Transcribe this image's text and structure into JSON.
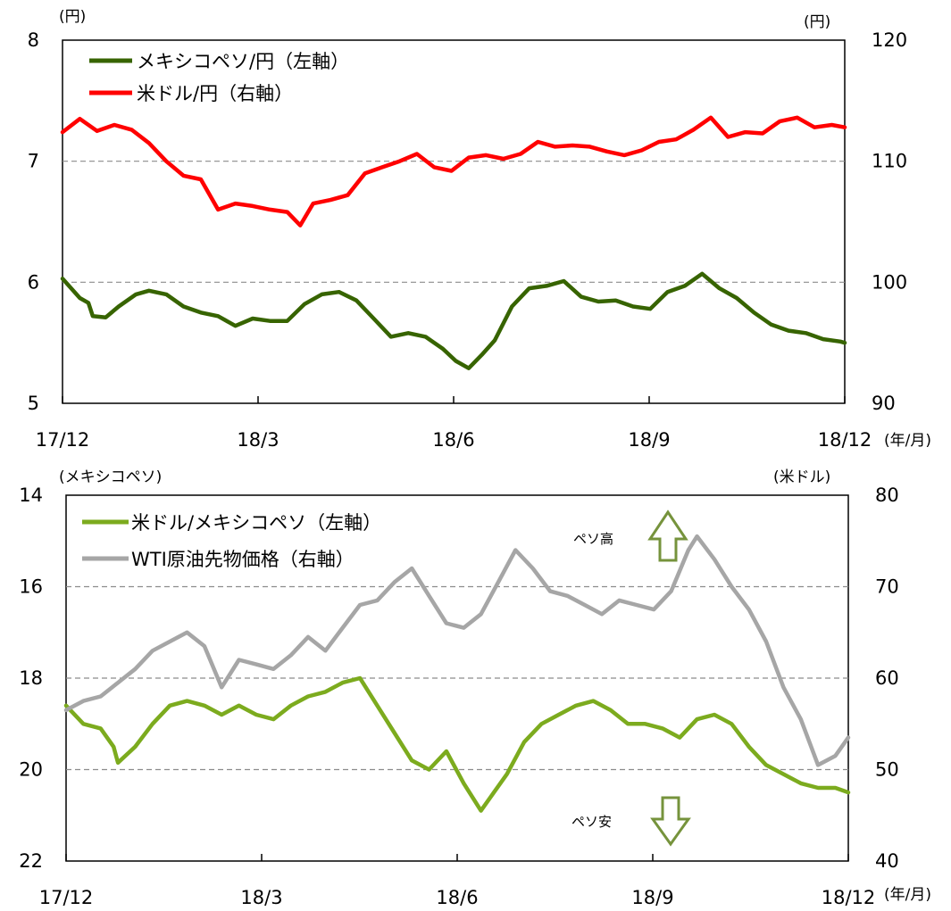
{
  "colors": {
    "mxn_jpy": "#376400",
    "usd_jpy": "#ff0000",
    "usd_mxn": "#7cab1e",
    "wti": "#a6a6a6",
    "arrow": "#76933c",
    "grid": "#8c8c8c"
  },
  "chart_data": [
    {
      "type": "line",
      "title": "",
      "x_ticks": [
        "17/12",
        "18/3",
        "18/6",
        "18/9",
        "18/12"
      ],
      "x_unit": "(年/月)",
      "y_left_unit": "(円)",
      "y_right_unit": "(円)",
      "y_left_ticks": [
        "5",
        "6",
        "7",
        "8"
      ],
      "y_right_ticks": [
        "90",
        "100",
        "110",
        "120"
      ],
      "y_left_range": [
        5,
        8
      ],
      "y_right_range": [
        90,
        120
      ],
      "grid_y_left": [
        6,
        7
      ],
      "legend_position": "top-left",
      "series": [
        {
          "name": "メキシコペソ/円（左軸）",
          "axis": "left",
          "color_key": "mxn_jpy",
          "points": [
            [
              0,
              6.03
            ],
            [
              0.1,
              5.95
            ],
            [
              0.2,
              5.87
            ],
            [
              0.3,
              5.83
            ],
            [
              0.35,
              5.72
            ],
            [
              0.5,
              5.71
            ],
            [
              0.65,
              5.8
            ],
            [
              0.85,
              5.9
            ],
            [
              1.0,
              5.93
            ],
            [
              1.2,
              5.9
            ],
            [
              1.4,
              5.8
            ],
            [
              1.6,
              5.75
            ],
            [
              1.8,
              5.72
            ],
            [
              2.0,
              5.64
            ],
            [
              2.2,
              5.7
            ],
            [
              2.4,
              5.68
            ],
            [
              2.6,
              5.68
            ],
            [
              2.8,
              5.82
            ],
            [
              3.0,
              5.9
            ],
            [
              3.2,
              5.92
            ],
            [
              3.4,
              5.85
            ],
            [
              3.6,
              5.7
            ],
            [
              3.8,
              5.55
            ],
            [
              4.0,
              5.58
            ],
            [
              4.2,
              5.55
            ],
            [
              4.4,
              5.45
            ],
            [
              4.55,
              5.35
            ],
            [
              4.7,
              5.29
            ],
            [
              4.85,
              5.4
            ],
            [
              5.0,
              5.52
            ],
            [
              5.2,
              5.8
            ],
            [
              5.4,
              5.95
            ],
            [
              5.6,
              5.97
            ],
            [
              5.8,
              6.01
            ],
            [
              6.0,
              5.88
            ],
            [
              6.2,
              5.84
            ],
            [
              6.4,
              5.85
            ],
            [
              6.6,
              5.8
            ],
            [
              6.8,
              5.78
            ],
            [
              7.0,
              5.92
            ],
            [
              7.2,
              5.97
            ],
            [
              7.4,
              6.07
            ],
            [
              7.6,
              5.95
            ],
            [
              7.8,
              5.87
            ],
            [
              8.0,
              5.75
            ],
            [
              8.2,
              5.65
            ],
            [
              8.4,
              5.6
            ],
            [
              8.6,
              5.58
            ],
            [
              8.8,
              5.53
            ],
            [
              9.0,
              5.51
            ],
            [
              9.05,
              5.5
            ]
          ]
        },
        {
          "name": "米ドル/円（右軸）",
          "axis": "right",
          "color_key": "usd_jpy",
          "points": [
            [
              0,
              112.4
            ],
            [
              0.2,
              113.5
            ],
            [
              0.4,
              112.5
            ],
            [
              0.6,
              113.0
            ],
            [
              0.8,
              112.6
            ],
            [
              1.0,
              111.5
            ],
            [
              1.2,
              110.0
            ],
            [
              1.4,
              108.8
            ],
            [
              1.6,
              108.5
            ],
            [
              1.8,
              106.0
            ],
            [
              2.0,
              106.5
            ],
            [
              2.2,
              106.3
            ],
            [
              2.4,
              106.0
            ],
            [
              2.6,
              105.8
            ],
            [
              2.75,
              104.7
            ],
            [
              2.9,
              106.5
            ],
            [
              3.1,
              106.8
            ],
            [
              3.3,
              107.2
            ],
            [
              3.5,
              109.0
            ],
            [
              3.7,
              109.5
            ],
            [
              3.9,
              110.0
            ],
            [
              4.1,
              110.6
            ],
            [
              4.3,
              109.5
            ],
            [
              4.5,
              109.2
            ],
            [
              4.7,
              110.3
            ],
            [
              4.9,
              110.5
            ],
            [
              5.1,
              110.2
            ],
            [
              5.3,
              110.6
            ],
            [
              5.5,
              111.6
            ],
            [
              5.7,
              111.2
            ],
            [
              5.9,
              111.3
            ],
            [
              6.1,
              111.2
            ],
            [
              6.3,
              110.8
            ],
            [
              6.5,
              110.5
            ],
            [
              6.7,
              110.9
            ],
            [
              6.9,
              111.6
            ],
            [
              7.1,
              111.8
            ],
            [
              7.3,
              112.6
            ],
            [
              7.5,
              113.6
            ],
            [
              7.7,
              112.0
            ],
            [
              7.9,
              112.4
            ],
            [
              8.1,
              112.3
            ],
            [
              8.3,
              113.3
            ],
            [
              8.5,
              113.6
            ],
            [
              8.7,
              112.8
            ],
            [
              8.9,
              113.0
            ],
            [
              9.05,
              112.8
            ]
          ]
        }
      ]
    },
    {
      "type": "line",
      "title": "",
      "x_ticks": [
        "17/12",
        "18/3",
        "18/6",
        "18/9",
        "18/12"
      ],
      "x_unit": "(年/月)",
      "y_left_unit": "(メキシコペソ)",
      "y_right_unit": "(米ドル)",
      "y_left_ticks": [
        "14",
        "16",
        "18",
        "20",
        "22"
      ],
      "y_right_ticks": [
        "80",
        "70",
        "60",
        "50",
        "40"
      ],
      "y_left_range": [
        22,
        14
      ],
      "y_left_inverted": true,
      "y_right_range": [
        40,
        80
      ],
      "grid_y_left": [
        16,
        18,
        20
      ],
      "legend_position": "top-left",
      "annotations": {
        "peso_high": "ペソ高",
        "peso_low": "ペソ安"
      },
      "series": [
        {
          "name": "米ドル/メキシコペソ（左軸）",
          "axis": "left",
          "color_key": "usd_mxn",
          "points": [
            [
              0,
              18.6
            ],
            [
              0.2,
              19.0
            ],
            [
              0.4,
              19.1
            ],
            [
              0.55,
              19.5
            ],
            [
              0.6,
              19.85
            ],
            [
              0.8,
              19.5
            ],
            [
              1.0,
              19.0
            ],
            [
              1.2,
              18.6
            ],
            [
              1.4,
              18.5
            ],
            [
              1.6,
              18.6
            ],
            [
              1.8,
              18.8
            ],
            [
              2.0,
              18.6
            ],
            [
              2.2,
              18.8
            ],
            [
              2.4,
              18.9
            ],
            [
              2.6,
              18.6
            ],
            [
              2.8,
              18.4
            ],
            [
              3.0,
              18.3
            ],
            [
              3.2,
              18.1
            ],
            [
              3.4,
              18.0
            ],
            [
              3.6,
              18.6
            ],
            [
              3.8,
              19.2
            ],
            [
              4.0,
              19.8
            ],
            [
              4.2,
              20.0
            ],
            [
              4.4,
              19.6
            ],
            [
              4.6,
              20.3
            ],
            [
              4.8,
              20.9
            ],
            [
              4.95,
              20.5
            ],
            [
              5.1,
              20.1
            ],
            [
              5.3,
              19.4
            ],
            [
              5.5,
              19.0
            ],
            [
              5.7,
              18.8
            ],
            [
              5.9,
              18.6
            ],
            [
              6.1,
              18.5
            ],
            [
              6.3,
              18.7
            ],
            [
              6.5,
              19.0
            ],
            [
              6.7,
              19.0
            ],
            [
              6.9,
              19.1
            ],
            [
              7.1,
              19.3
            ],
            [
              7.3,
              18.9
            ],
            [
              7.5,
              18.8
            ],
            [
              7.7,
              19.0
            ],
            [
              7.9,
              19.5
            ],
            [
              8.1,
              19.9
            ],
            [
              8.3,
              20.1
            ],
            [
              8.5,
              20.3
            ],
            [
              8.7,
              20.4
            ],
            [
              8.9,
              20.4
            ],
            [
              9.05,
              20.5
            ]
          ]
        },
        {
          "name": "WTI原油先物価格（右軸）",
          "axis": "right",
          "color_key": "wti",
          "points": [
            [
              0,
              56.5
            ],
            [
              0.2,
              57.5
            ],
            [
              0.4,
              58.0
            ],
            [
              0.6,
              59.5
            ],
            [
              0.8,
              61.0
            ],
            [
              1.0,
              63.0
            ],
            [
              1.2,
              64.0
            ],
            [
              1.4,
              65.0
            ],
            [
              1.6,
              63.5
            ],
            [
              1.8,
              59.0
            ],
            [
              2.0,
              62.0
            ],
            [
              2.2,
              61.5
            ],
            [
              2.4,
              61.0
            ],
            [
              2.6,
              62.5
            ],
            [
              2.8,
              64.5
            ],
            [
              3.0,
              63.0
            ],
            [
              3.2,
              65.5
            ],
            [
              3.4,
              68.0
            ],
            [
              3.6,
              68.5
            ],
            [
              3.8,
              70.5
            ],
            [
              4.0,
              72.0
            ],
            [
              4.2,
              69.0
            ],
            [
              4.4,
              66.0
            ],
            [
              4.6,
              65.5
            ],
            [
              4.8,
              67.0
            ],
            [
              5.0,
              70.5
            ],
            [
              5.2,
              74.0
            ],
            [
              5.4,
              72.0
            ],
            [
              5.6,
              69.5
            ],
            [
              5.8,
              69.0
            ],
            [
              6.0,
              68.0
            ],
            [
              6.2,
              67.0
            ],
            [
              6.4,
              68.5
            ],
            [
              6.6,
              68.0
            ],
            [
              6.8,
              67.5
            ],
            [
              7.0,
              69.5
            ],
            [
              7.2,
              74.0
            ],
            [
              7.3,
              75.5
            ],
            [
              7.5,
              73.0
            ],
            [
              7.7,
              70.0
            ],
            [
              7.9,
              67.5
            ],
            [
              8.1,
              64.0
            ],
            [
              8.3,
              59.0
            ],
            [
              8.5,
              55.5
            ],
            [
              8.7,
              50.5
            ],
            [
              8.9,
              51.5
            ],
            [
              9.05,
              53.5
            ]
          ]
        }
      ]
    }
  ]
}
